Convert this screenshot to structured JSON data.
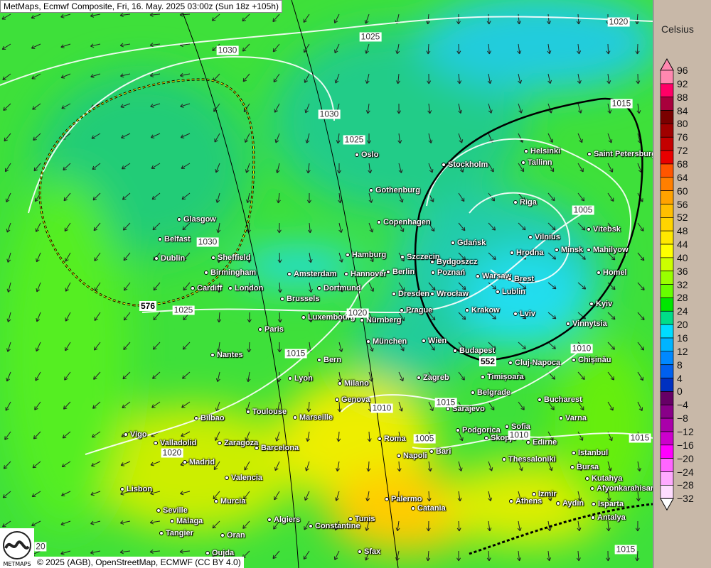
{
  "title": "MetMaps, Ecmwf Composite, Fri, 16. May. 2025 03:00z (Sun 18z +105h)",
  "credit": "© 2025 (AGB), OpenStreetMap, ECMWF (CC BY 4.0)",
  "logo_text": "METMAPS",
  "legend": {
    "unit": "Celsius",
    "labels": [
      "96",
      "92",
      "88",
      "84",
      "80",
      "76",
      "72",
      "68",
      "64",
      "60",
      "56",
      "52",
      "48",
      "44",
      "40",
      "36",
      "32",
      "28",
      "24",
      "20",
      "16",
      "12",
      "8",
      "4",
      "0",
      "−4",
      "−8",
      "−12",
      "−16",
      "−20",
      "−24",
      "−28",
      "−32"
    ],
    "colors": [
      "#ff88b0",
      "#ff0066",
      "#a8003c",
      "#7a0000",
      "#a00000",
      "#c40000",
      "#e80000",
      "#ff5500",
      "#ff7f00",
      "#ffa200",
      "#ffbf00",
      "#ffd400",
      "#ffe800",
      "#ffff00",
      "#ccff00",
      "#99ff00",
      "#66ff00",
      "#00e600",
      "#00dd88",
      "#00ddff",
      "#00b4ff",
      "#0088ff",
      "#0060ee",
      "#0030c0",
      "#660066",
      "#880088",
      "#aa00aa",
      "#cc00cc",
      "#ff00ff",
      "#ff66ff",
      "#ffaaff",
      "#ffddff"
    ],
    "top_arrow_color": "#ff88b0",
    "bottom_arrow_color": "#ffffff"
  },
  "cities": [
    "Oslo",
    "Stockholm",
    "Helsinki",
    "Saint Petersburg",
    "Tallinn",
    "Gothenburg",
    "Riga",
    "Glasgow",
    "Copenhagen",
    "Belfast",
    "Gdańsk",
    "Vilnius",
    "Vitebsk",
    "Dublin",
    "Sheffield",
    "Hamburg",
    "Szczecin",
    "Bydgoszcz",
    "Hrodna",
    "Minsk",
    "Mahilyow",
    "Birmingham",
    "Amsterdam",
    "Hannover",
    "Berlin",
    "Poznań",
    "Warsaw",
    "Brest",
    "Homel",
    "Cardiff",
    "London",
    "Dortmund",
    "Lublin",
    "Dresden",
    "Wrocław",
    "Brussels",
    "Prague",
    "Krakow",
    "Lviv",
    "Kyiv",
    "Luxembourg",
    "Nürnberg",
    "Vinnytsia",
    "Paris",
    "München",
    "Wien",
    "Budapest",
    "Nantes",
    "Bern",
    "Cluj-Napoca",
    "Chișinău",
    "Lyon",
    "Milano",
    "Zagreb",
    "Timișoara",
    "Belgrade",
    "Genova",
    "Bucharest",
    "Bilbao",
    "Toulouse",
    "Marseille",
    "Sarajevo",
    "Varna",
    "Vigo",
    "Sofia",
    "Podgorica",
    "Skopje",
    "Valladolid",
    "Zaragoza",
    "Barcelona",
    "Roma",
    "Bari",
    "Edirne",
    "Istanbul",
    "Madrid",
    "Napoli",
    "Thessaloniki",
    "Bursa",
    "Valencia",
    "Kutahya",
    "Lisbon",
    "Afyonkarahisar",
    "Murcia",
    "Palermo",
    "Catania",
    "Athens",
    "Izmir",
    "Aydın",
    "Isparta",
    "Seville",
    "Málaga",
    "Algiers",
    "Tunis",
    "Antalya",
    "Constantine",
    "Tangier",
    "Oran",
    "Oujda",
    "Sfax"
  ],
  "isobar_labels": [
    "1025",
    "1030",
    "1020",
    "1030",
    "1015",
    "1025",
    "1005",
    "1030",
    "1025",
    "1020",
    "1015",
    "1010",
    "1010",
    "1015",
    "1005",
    "1010",
    "1020",
    "1015",
    "1015",
    "20"
  ],
  "geopotential_labels": [
    "576",
    "552"
  ]
}
